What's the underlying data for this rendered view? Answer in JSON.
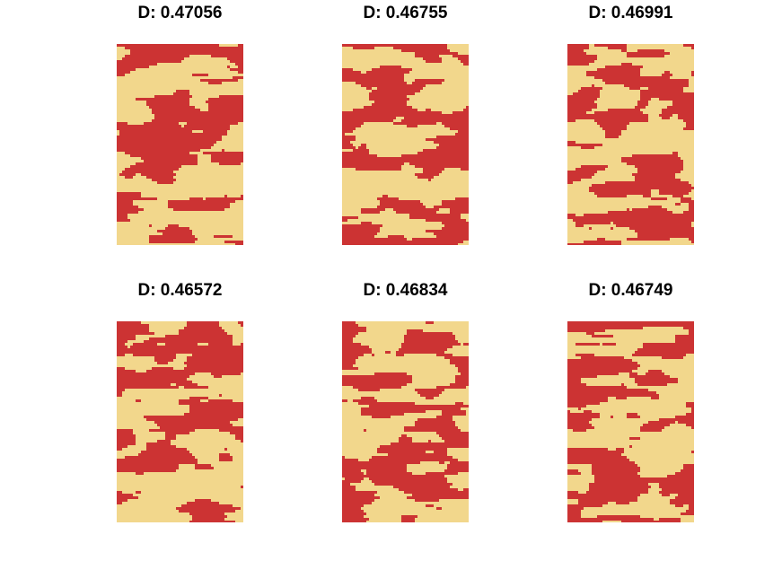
{
  "chart_data": {
    "type": "heatmap",
    "layout": "2x3 grid of binary field maps",
    "colors": {
      "phase_a": "#f2d78c",
      "phase_b": "#cc3333"
    },
    "panels": [
      {
        "title": "D: 0.47056",
        "value": 0.47056
      },
      {
        "title": "D: 0.46755",
        "value": 0.46755
      },
      {
        "title": "D: 0.46991",
        "value": 0.46991
      },
      {
        "title": "D: 0.46572",
        "value": 0.46572
      },
      {
        "title": "D: 0.46834",
        "value": 0.46834
      },
      {
        "title": "D: 0.46749",
        "value": 0.46749
      }
    ]
  }
}
